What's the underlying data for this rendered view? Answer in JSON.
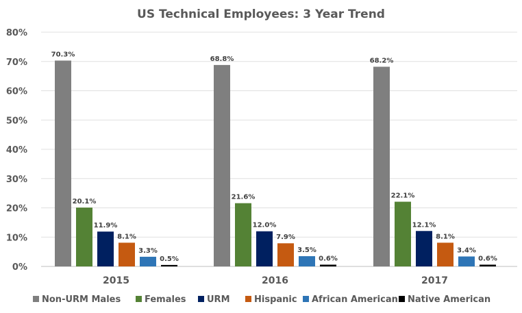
{
  "chart_data": {
    "type": "bar",
    "title": "US Technical Employees: 3 Year Trend",
    "categories": [
      "2015",
      "2016",
      "2017"
    ],
    "ylim": [
      0,
      80
    ],
    "yticks": [
      "0%",
      "10%",
      "20%",
      "30%",
      "40%",
      "50%",
      "60%",
      "70%",
      "80%"
    ],
    "grid": true,
    "legend_position": "bottom",
    "series": [
      {
        "name": "Non-URM Males",
        "color": "#7f7f7f",
        "values": [
          70.3,
          68.8,
          68.2
        ],
        "labels": [
          "70.3%",
          "68.8%",
          "68.2%"
        ]
      },
      {
        "name": "Females",
        "color": "#548235",
        "values": [
          20.1,
          21.6,
          22.1
        ],
        "labels": [
          "20.1%",
          "21.6%",
          "22.1%"
        ]
      },
      {
        "name": "URM",
        "color": "#002060",
        "values": [
          11.9,
          12.0,
          12.1
        ],
        "labels": [
          "11.9%",
          "12.0%",
          "12.1%"
        ]
      },
      {
        "name": "Hispanic",
        "color": "#c55a11",
        "values": [
          8.1,
          7.9,
          8.1
        ],
        "labels": [
          "8.1%",
          "7.9%",
          "8.1%"
        ]
      },
      {
        "name": "African American",
        "color": "#2e75b6",
        "values": [
          3.3,
          3.5,
          3.4
        ],
        "labels": [
          "3.3%",
          "3.5%",
          "3.4%"
        ]
      },
      {
        "name": "Native American",
        "color": "#000000",
        "values": [
          0.5,
          0.6,
          0.6
        ],
        "labels": [
          "0.5%",
          "0.6%",
          "0.6%"
        ]
      }
    ]
  }
}
